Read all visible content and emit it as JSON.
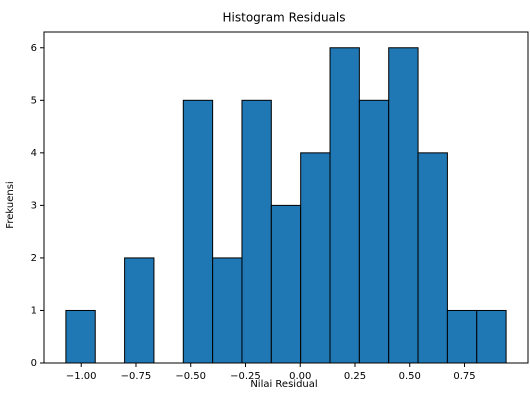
{
  "chart_data": {
    "type": "histogram",
    "title": "Histogram Residuals",
    "xlabel": "Nilai Residual",
    "ylabel": "Frekuensi",
    "bins": [
      -1.07,
      -0.936,
      -0.802,
      -0.668,
      -0.534,
      -0.4,
      -0.266,
      -0.132,
      0.002,
      0.136,
      0.27,
      0.404,
      0.538,
      0.672,
      0.806,
      0.94
    ],
    "values": [
      1,
      0,
      2,
      0,
      5,
      2,
      5,
      3,
      4,
      6,
      5,
      6,
      4,
      1,
      1
    ],
    "color": "#1f77b4",
    "edgecolor": "#000000",
    "xlim": [
      -1.17,
      1.04
    ],
    "xticks": [
      {
        "value": -1.0,
        "label": "−1.00"
      },
      {
        "value": -0.75,
        "label": "−0.75"
      },
      {
        "value": -0.5,
        "label": "−0.50"
      },
      {
        "value": -0.25,
        "label": "−0.25"
      },
      {
        "value": 0,
        "label": "0.00"
      },
      {
        "value": 0.25,
        "label": "0.25"
      },
      {
        "value": 0.5,
        "label": "0.50"
      },
      {
        "value": 0.75,
        "label": "0.75"
      }
    ],
    "ylim": [
      0,
      6.3
    ],
    "yticks": [
      0,
      1,
      2,
      3,
      4,
      5,
      6
    ]
  }
}
